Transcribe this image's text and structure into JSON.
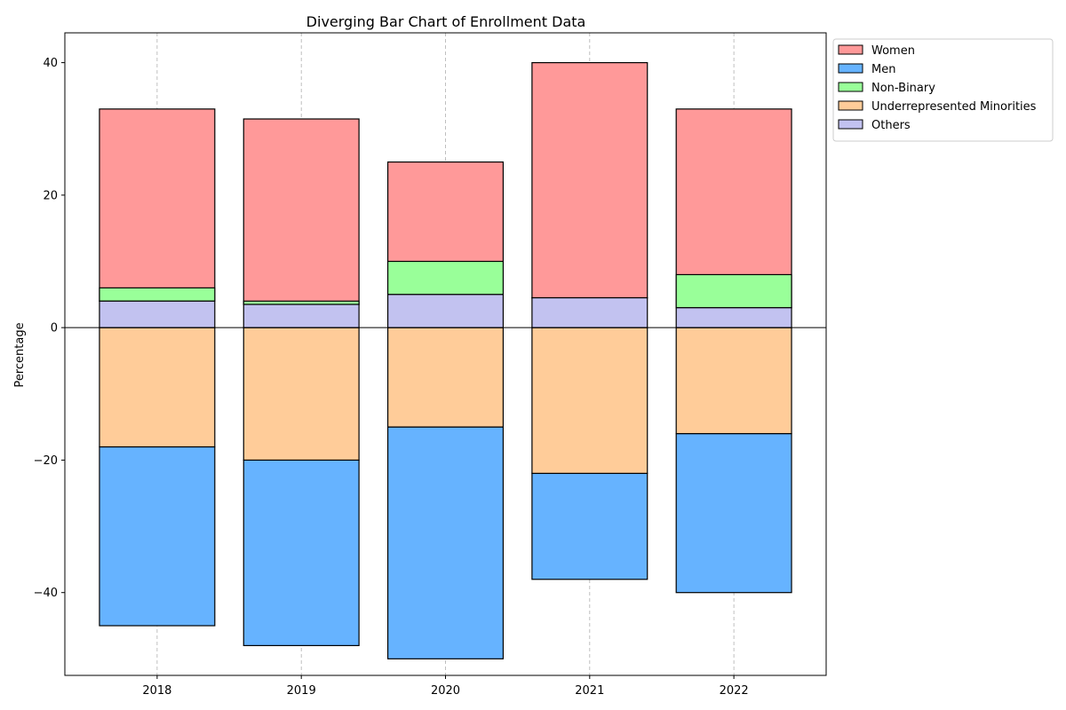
{
  "chart_data": {
    "type": "bar",
    "title": "Diverging Bar Chart of Enrollment Data",
    "xlabel": "",
    "ylabel": "Percentage",
    "categories": [
      "2018",
      "2019",
      "2020",
      "2021",
      "2022"
    ],
    "ylim": [
      -52.5,
      44.5
    ],
    "yticks": [
      -40,
      -20,
      0,
      20,
      40
    ],
    "grid": "x-dashed",
    "legend": "outside-top-right",
    "bar_outline_color": "#000000",
    "series": [
      {
        "name": "Women",
        "color": "#ff9999",
        "direction": "up",
        "base": "top_of_others",
        "values": [
          29,
          28,
          20,
          35.5,
          30
        ]
      },
      {
        "name": "Men",
        "color": "#66b3ff",
        "direction": "down",
        "base": "below_minorities",
        "values": [
          27,
          28,
          35,
          16,
          24
        ]
      },
      {
        "name": "Non-Binary",
        "color": "#99ff99",
        "direction": "up",
        "base": "top_of_others",
        "values": [
          2,
          0.5,
          5,
          0,
          5
        ]
      },
      {
        "name": "Underrepresented Minorities",
        "color": "#ffcc99",
        "direction": "down",
        "base": "zero",
        "values": [
          18,
          20,
          15,
          22,
          16
        ]
      },
      {
        "name": "Others",
        "color": "#c2c2f0",
        "direction": "up",
        "base": "zero",
        "values": [
          4,
          3.5,
          5,
          4.5,
          3
        ]
      }
    ]
  }
}
